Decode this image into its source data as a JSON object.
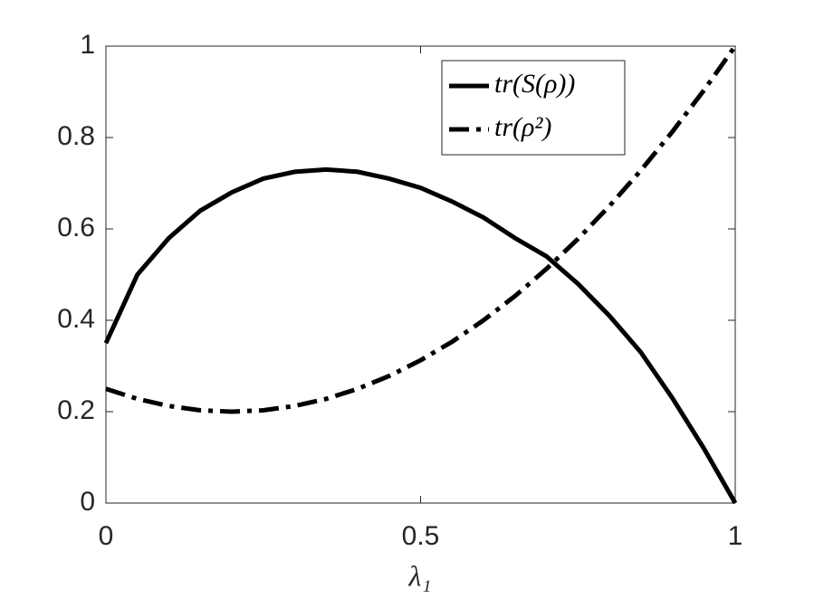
{
  "chart_data": {
    "type": "line",
    "xlabel": "λ₁",
    "x": [
      0,
      0.05,
      0.1,
      0.15,
      0.2,
      0.25,
      0.3,
      0.35,
      0.4,
      0.45,
      0.5,
      0.55,
      0.6,
      0.65,
      0.7,
      0.75,
      0.8,
      0.85,
      0.9,
      0.95,
      1
    ],
    "series": [
      {
        "name": "tr(S(ρ))",
        "color": "#000000",
        "dash": "solid",
        "values": [
          0.35,
          0.5,
          0.58,
          0.64,
          0.68,
          0.71,
          0.725,
          0.73,
          0.725,
          0.71,
          0.69,
          0.66,
          0.625,
          0.58,
          0.54,
          0.48,
          0.41,
          0.33,
          0.23,
          0.12,
          0
        ]
      },
      {
        "name": "tr(ρ²)",
        "color": "#000000",
        "dash": "dashdot",
        "values": [
          0.25,
          0.228,
          0.2125,
          0.203,
          0.2,
          0.203,
          0.2125,
          0.228,
          0.25,
          0.278,
          0.3125,
          0.353,
          0.4,
          0.453,
          0.5125,
          0.578,
          0.65,
          0.728,
          0.8125,
          0.903,
          1
        ]
      }
    ],
    "xlim": [
      0,
      1
    ],
    "xticks": [
      0,
      0.5,
      1
    ],
    "ylim": [
      0,
      1
    ],
    "yticks": [
      0,
      0.2,
      0.4,
      0.6,
      0.8,
      1
    ],
    "grid": false,
    "legend": "top-right"
  }
}
